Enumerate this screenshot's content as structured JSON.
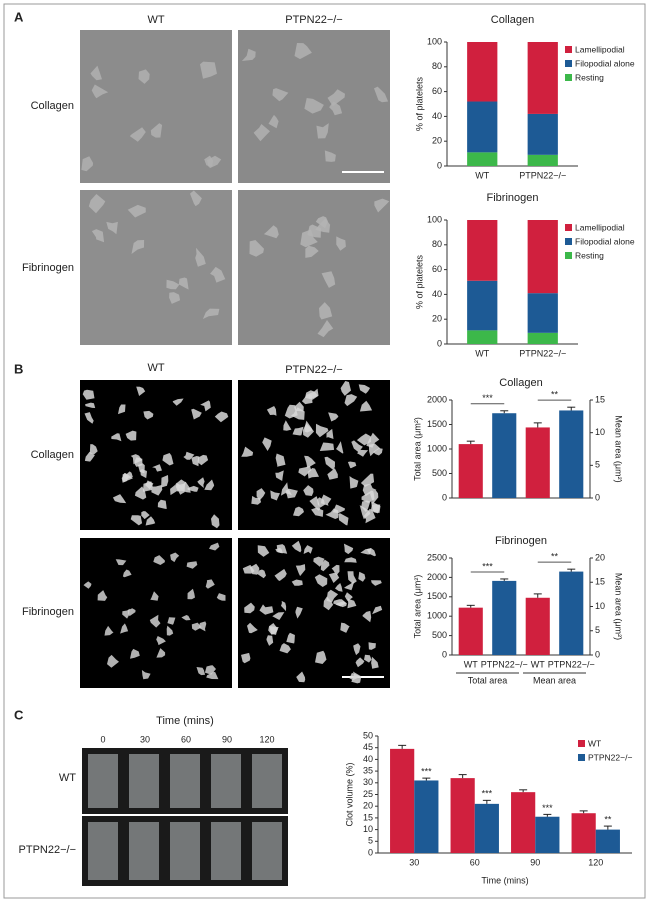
{
  "figure": {
    "panel_labels": [
      "A",
      "B",
      "C"
    ],
    "panel_a": {
      "columns": [
        "WT",
        "PTPN22−/−"
      ],
      "rows": [
        "Collagen",
        "Fibrinogen"
      ]
    },
    "panel_b": {
      "columns": [
        "WT",
        "PTPN22−/−"
      ],
      "rows": [
        "Collagen",
        "Fibrinogen"
      ]
    },
    "panel_c": {
      "title": "Time (mins)",
      "times": [
        "0",
        "30",
        "60",
        "90",
        "120"
      ],
      "rows": [
        "WT",
        "PTPN22−/−"
      ]
    }
  },
  "chart_data": [
    {
      "type": "bar",
      "stacked": true,
      "title": "Collagen",
      "ylabel": "% of platelets",
      "categories": [
        "WT",
        "PTPN22−/−"
      ],
      "series": [
        {
          "name": "Resting",
          "color": "#3cb84a",
          "values": [
            11,
            9
          ]
        },
        {
          "name": "Filopodial alone",
          "color": "#1d5a95",
          "values": [
            41,
            33
          ]
        },
        {
          "name": "Lamellipodial",
          "color": "#d0203e",
          "values": [
            48,
            58
          ]
        }
      ],
      "ylim": [
        0,
        100
      ],
      "yticks": [
        0,
        20,
        40,
        60,
        80,
        100
      ],
      "legend": "upper right"
    },
    {
      "type": "bar",
      "stacked": true,
      "title": "Fibrinogen",
      "ylabel": "% of platelets",
      "categories": [
        "WT",
        "PTPN22−/−"
      ],
      "series": [
        {
          "name": "Resting",
          "color": "#3cb84a",
          "values": [
            11,
            9
          ]
        },
        {
          "name": "Filopodial alone",
          "color": "#1d5a95",
          "values": [
            40,
            32
          ]
        },
        {
          "name": "Lamellipodial",
          "color": "#d0203e",
          "values": [
            49,
            59
          ]
        }
      ],
      "ylim": [
        0,
        100
      ],
      "yticks": [
        0,
        20,
        40,
        60,
        80,
        100
      ],
      "legend": "upper right"
    },
    {
      "type": "bar",
      "title": "Collagen",
      "ylabel": "Total area (μm²)",
      "y2label": "Mean area (μm²)",
      "categories": [
        null,
        null,
        null,
        null
      ],
      "category_colors": [
        "#d0203e",
        "#1d5a95",
        "#d0203e",
        "#1d5a95"
      ],
      "series": [
        {
          "values": [
            1100,
            1730,
            null,
            null
          ],
          "errors": [
            60,
            50,
            null,
            null
          ]
        },
        {
          "axis": "y2",
          "values": [
            null,
            null,
            10.8,
            13.4
          ],
          "errors": [
            null,
            null,
            0.7,
            0.5
          ]
        }
      ],
      "annotations": [
        "***",
        "**"
      ],
      "ylim": [
        0,
        2000
      ],
      "yticks": [
        0,
        500,
        1000,
        1500,
        2000
      ],
      "y2lim": [
        0,
        15
      ],
      "y2ticks": [
        0,
        5,
        10,
        15
      ]
    },
    {
      "type": "bar",
      "title": "Fibrinogen",
      "ylabel": "Total area (μm²)",
      "y2label": "Mean area (μm²)",
      "categories": [
        "WT",
        "PTPN22−/−",
        "WT",
        "PTPN22−/−"
      ],
      "group_labels": [
        "Total area",
        "Mean area"
      ],
      "category_colors": [
        "#d0203e",
        "#1d5a95",
        "#d0203e",
        "#1d5a95"
      ],
      "series": [
        {
          "values": [
            1220,
            1910,
            null,
            null
          ],
          "errors": [
            60,
            50,
            null,
            null
          ]
        },
        {
          "axis": "y2",
          "values": [
            null,
            null,
            11.8,
            17.2
          ],
          "errors": [
            null,
            null,
            0.8,
            0.5
          ]
        }
      ],
      "annotations": [
        "***",
        "**"
      ],
      "ylim": [
        0,
        2500
      ],
      "yticks": [
        0,
        500,
        1000,
        1500,
        2000,
        2500
      ],
      "y2lim": [
        0,
        20
      ],
      "y2ticks": [
        0,
        5,
        10,
        15,
        20
      ]
    },
    {
      "type": "bar",
      "xlabel": "Time (mins)",
      "ylabel": "Clot volume (%)",
      "categories": [
        "30",
        "60",
        "90",
        "120"
      ],
      "series": [
        {
          "name": "WT",
          "color": "#d0203e",
          "values": [
            44.5,
            32,
            26,
            17
          ],
          "errors": [
            1.5,
            1.5,
            1,
            1
          ]
        },
        {
          "name": "PTPN22−/−",
          "color": "#1d5a95",
          "values": [
            31,
            21,
            15.5,
            10
          ],
          "errors": [
            1,
            1.5,
            1,
            1.5
          ],
          "annotations": [
            "***",
            "***",
            "***",
            "**"
          ]
        }
      ],
      "ylim": [
        0,
        50
      ],
      "yticks": [
        0,
        5,
        10,
        15,
        20,
        25,
        30,
        35,
        40,
        45,
        50
      ],
      "legend": "upper right"
    }
  ]
}
